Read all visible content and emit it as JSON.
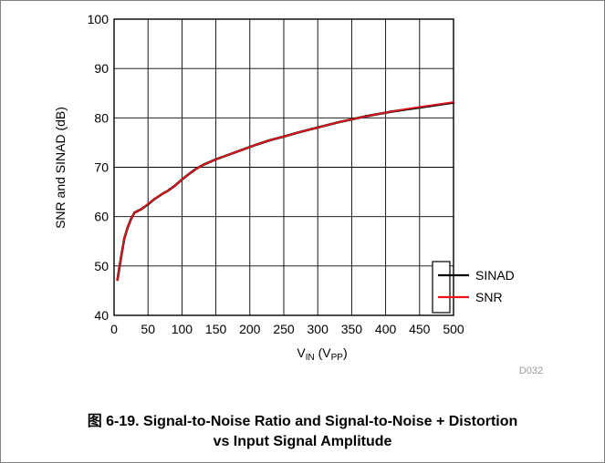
{
  "chart_data": {
    "type": "line",
    "ylabel": "SNR and SINAD (dB)",
    "xlabel_main": "V",
    "xlabel_sub1": "IN",
    "xlabel_mid": " (V",
    "xlabel_sub2": "PP",
    "xlabel_end": ")",
    "xlim": [
      0,
      500
    ],
    "ylim": [
      40,
      100
    ],
    "x_ticks": [
      0,
      50,
      100,
      150,
      200,
      250,
      300,
      350,
      400,
      450,
      500
    ],
    "y_ticks": [
      40,
      50,
      60,
      70,
      80,
      90,
      100
    ],
    "grid": true,
    "legend_position": "bottom-right",
    "series": [
      {
        "name": "SINAD",
        "color": "#000000",
        "x": [
          5,
          10,
          15,
          20,
          25,
          30,
          40,
          50,
          60,
          70,
          80,
          90,
          100,
          110,
          120,
          130,
          150,
          170,
          190,
          210,
          230,
          250,
          270,
          290,
          310,
          330,
          350,
          370,
          390,
          410,
          430,
          450,
          470,
          490,
          500
        ],
        "y": [
          47.2,
          51.5,
          55.5,
          57.8,
          59.5,
          60.8,
          61.5,
          62.5,
          63.6,
          64.5,
          65.3,
          66.3,
          67.5,
          68.6,
          69.6,
          70.4,
          71.6,
          72.6,
          73.6,
          74.6,
          75.5,
          76.2,
          77.0,
          77.7,
          78.4,
          79.1,
          79.7,
          80.3,
          80.8,
          81.3,
          81.7,
          82.1,
          82.5,
          82.9,
          83.1
        ]
      },
      {
        "name": "SNR",
        "color": "#e8141b",
        "x": [
          5,
          10,
          15,
          20,
          25,
          30,
          40,
          50,
          60,
          70,
          80,
          90,
          100,
          110,
          120,
          130,
          150,
          170,
          190,
          210,
          230,
          250,
          270,
          290,
          310,
          330,
          350,
          370,
          390,
          410,
          430,
          450,
          470,
          490,
          500
        ],
        "y": [
          47.2,
          51.5,
          55.5,
          57.8,
          59.5,
          60.8,
          61.5,
          62.6,
          63.6,
          64.5,
          65.3,
          66.3,
          67.5,
          68.6,
          69.6,
          70.4,
          71.6,
          72.6,
          73.6,
          74.6,
          75.5,
          76.2,
          77.0,
          77.7,
          78.4,
          79.1,
          79.7,
          80.3,
          80.8,
          81.3,
          81.8,
          82.2,
          82.6,
          83.0,
          83.2
        ]
      }
    ],
    "figure_id": "D032"
  },
  "caption": {
    "line1": "图 6-19. Signal-to-Noise Ratio and Signal-to-Noise + Distortion",
    "line2": "vs Input Signal Amplitude"
  }
}
